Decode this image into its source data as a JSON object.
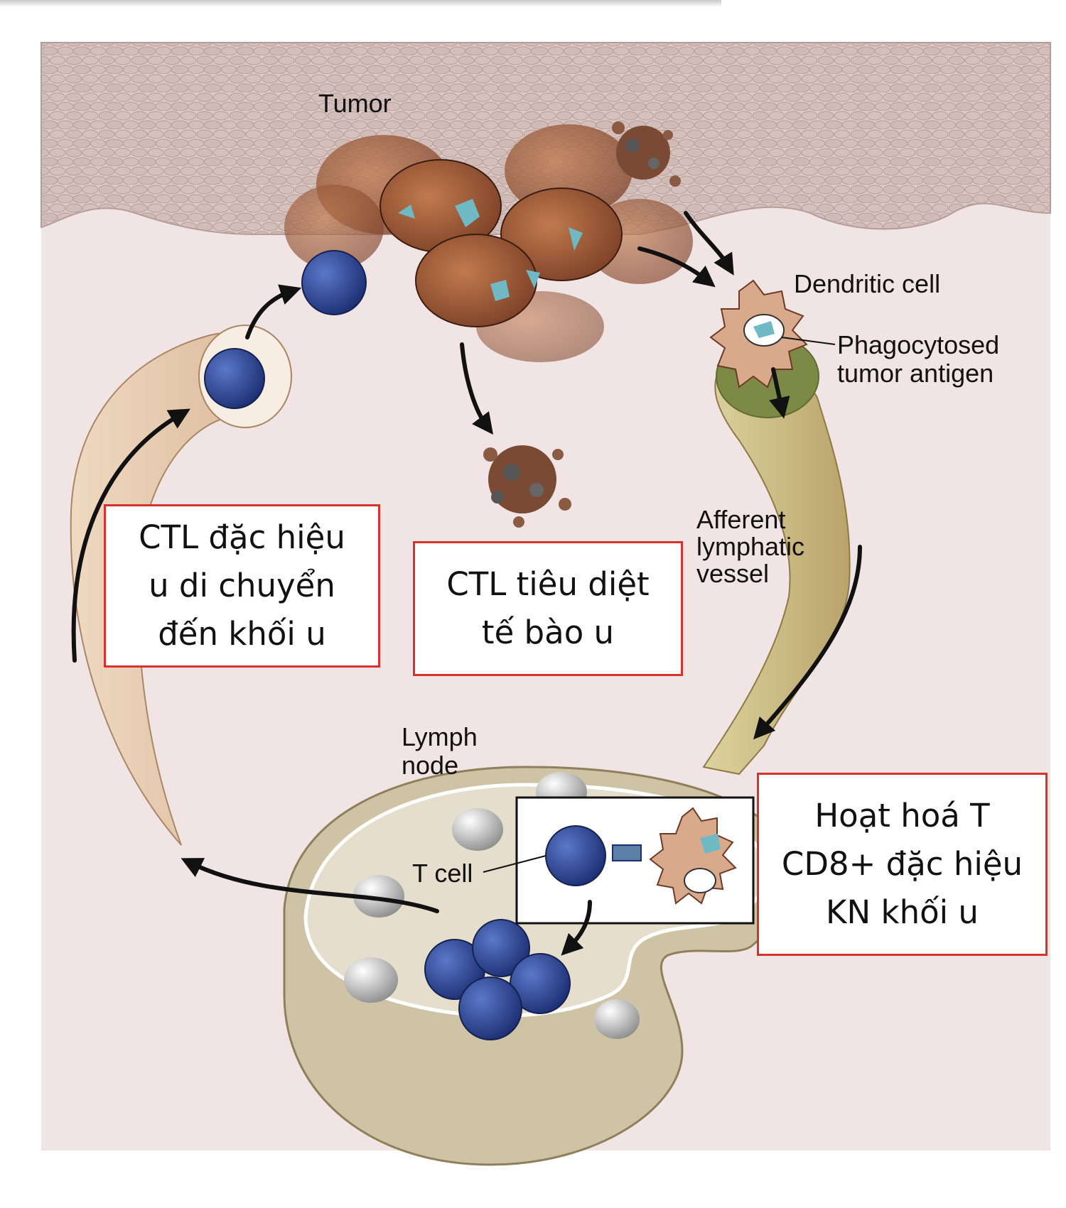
{
  "labels": {
    "tumor": "Tumor",
    "dendritic_cell": "Dendritic cell",
    "phagocytosed_1": "Phagocytosed",
    "phagocytosed_2": "tumor antigen",
    "afferent_1": "Afferent",
    "afferent_2": "lymphatic",
    "afferent_3": "vessel",
    "lymph_1": "Lymph",
    "lymph_2": "node",
    "t_cell": "T cell"
  },
  "boxes": {
    "migrate": [
      "CTL đặc hiệu",
      "u di chuyển",
      "đến khối u"
    ],
    "kill": [
      "CTL tiêu diệt",
      "tế bào u"
    ],
    "activate": [
      "Hoạt hoá T",
      "CD8+ đặc hiệu",
      "KN khối u"
    ]
  },
  "colors": {
    "box_border": "#d8322c",
    "tissue": "#d9c4c0",
    "background": "#f1e4e4",
    "tumor_cell": "#9c5a3a",
    "t_cell": "#2f4a9c",
    "lymph_node": "#cfc3a5"
  }
}
